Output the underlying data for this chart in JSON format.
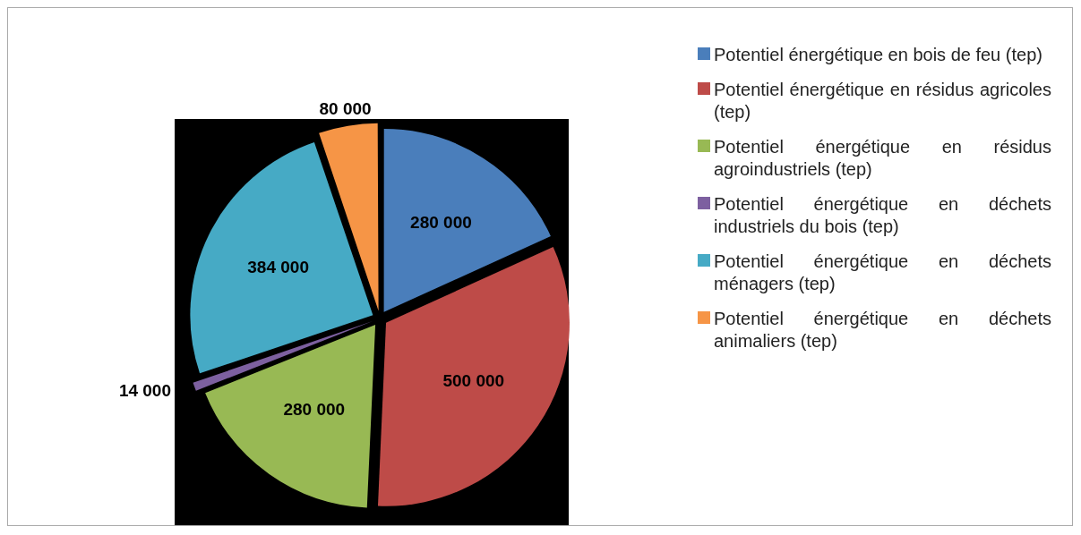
{
  "chart_data": {
    "type": "pie",
    "categories": [
      "Potentiel énergétique en bois de feu (tep)",
      "Potentiel énergétique en résidus agricoles (tep)",
      "Potentiel énergétique en résidus agroindustriels (tep)",
      "Potentiel énergétique  en déchets industriels du bois (tep)",
      "Potentiel énergétique en déchets ménagers (tep)",
      "Potentiel énergétique en déchets animaliers (tep)"
    ],
    "values": [
      280000,
      500000,
      280000,
      14000,
      384000,
      80000
    ],
    "colors": [
      "#4a7ebb",
      "#be4b48",
      "#98b954",
      "#7d60a0",
      "#46aac5",
      "#f69546"
    ],
    "value_labels": [
      "280 000",
      "500 000",
      "280 000",
      "14 000",
      "384 000",
      "80 000"
    ],
    "legend": "right"
  }
}
